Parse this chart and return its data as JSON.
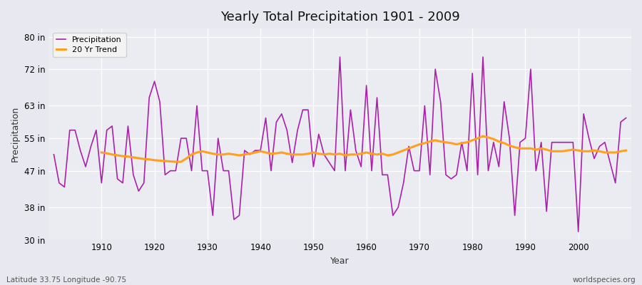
{
  "title": "Yearly Total Precipitation 1901 - 2009",
  "xlabel": "Year",
  "ylabel": "Precipitation",
  "lat_lon_label": "Latitude 33.75 Longitude -90.75",
  "source_label": "worldspecies.org",
  "ylim": [
    30,
    82
  ],
  "yticks": [
    30,
    38,
    47,
    55,
    63,
    72,
    80
  ],
  "ytick_labels": [
    "30 in",
    "38 in",
    "47 in",
    "55 in",
    "63 in",
    "72 in",
    "80 in"
  ],
  "xlim": [
    1900,
    2010
  ],
  "bg_color": "#e8e8f0",
  "plot_bg_color": "#ebebf2",
  "grid_color": "#ffffff",
  "precip_color": "#aa22aa",
  "trend_color": "#ffa020",
  "legend_entries": [
    "Precipitation",
    "20 Yr Trend"
  ],
  "years": [
    1901,
    1902,
    1903,
    1904,
    1905,
    1906,
    1907,
    1908,
    1909,
    1910,
    1911,
    1912,
    1913,
    1914,
    1915,
    1916,
    1917,
    1918,
    1919,
    1920,
    1921,
    1922,
    1923,
    1924,
    1925,
    1926,
    1927,
    1928,
    1929,
    1930,
    1931,
    1932,
    1933,
    1934,
    1935,
    1936,
    1937,
    1938,
    1939,
    1940,
    1941,
    1942,
    1943,
    1944,
    1945,
    1946,
    1947,
    1948,
    1949,
    1950,
    1951,
    1952,
    1953,
    1954,
    1955,
    1956,
    1957,
    1958,
    1959,
    1960,
    1961,
    1962,
    1963,
    1964,
    1965,
    1966,
    1967,
    1968,
    1969,
    1970,
    1971,
    1972,
    1973,
    1974,
    1975,
    1976,
    1977,
    1978,
    1979,
    1980,
    1981,
    1982,
    1983,
    1984,
    1985,
    1986,
    1987,
    1988,
    1989,
    1990,
    1991,
    1992,
    1993,
    1994,
    1995,
    1996,
    1997,
    1998,
    1999,
    2000,
    2001,
    2002,
    2003,
    2004,
    2005,
    2006,
    2007,
    2008,
    2009
  ],
  "precip": [
    51,
    44,
    43,
    57,
    57,
    52,
    48,
    53,
    57,
    44,
    57,
    58,
    45,
    44,
    58,
    46,
    42,
    44,
    65,
    69,
    64,
    46,
    47,
    47,
    55,
    55,
    47,
    63,
    47,
    47,
    36,
    55,
    47,
    47,
    35,
    36,
    52,
    51,
    52,
    52,
    60,
    47,
    59,
    61,
    57,
    49,
    57,
    62,
    62,
    48,
    56,
    51,
    49,
    47,
    75,
    47,
    62,
    52,
    48,
    68,
    47,
    65,
    46,
    46,
    36,
    38,
    44,
    53,
    47,
    47,
    63,
    46,
    72,
    64,
    46,
    45,
    46,
    54,
    47,
    71,
    46,
    75,
    47,
    54,
    48,
    64,
    55,
    36,
    54,
    55,
    72,
    47,
    54,
    37,
    54,
    54,
    54,
    54,
    54,
    32,
    61,
    55,
    50,
    53,
    54,
    49,
    44,
    59,
    60
  ],
  "trend": [
    null,
    null,
    null,
    null,
    null,
    null,
    null,
    null,
    null,
    51.5,
    51.3,
    51.0,
    50.8,
    50.6,
    50.5,
    50.3,
    50.1,
    49.9,
    49.8,
    49.6,
    49.5,
    49.4,
    49.3,
    49.2,
    49.2,
    50.0,
    51.0,
    51.5,
    51.8,
    51.5,
    51.2,
    51.0,
    51.0,
    51.2,
    51.0,
    50.8,
    51.0,
    51.2,
    51.5,
    51.8,
    51.5,
    51.2,
    51.3,
    51.5,
    51.2,
    51.0,
    51.0,
    51.0,
    51.2,
    51.5,
    51.2,
    51.0,
    51.2,
    51.0,
    51.2,
    50.8,
    51.0,
    51.0,
    51.2,
    51.5,
    51.2,
    51.0,
    51.2,
    50.8,
    51.0,
    51.5,
    52.0,
    52.5,
    53.0,
    53.5,
    53.8,
    54.2,
    54.5,
    54.2,
    54.0,
    53.8,
    53.5,
    53.8,
    54.0,
    54.5,
    55.0,
    55.5,
    55.2,
    54.8,
    54.2,
    53.8,
    53.2,
    52.8,
    52.5,
    52.5,
    52.5,
    52.2,
    52.5,
    52.2,
    51.8,
    51.8,
    51.8,
    52.0,
    52.2,
    52.0,
    51.8,
    51.8,
    52.0,
    51.8,
    51.5,
    51.5,
    51.5,
    51.8,
    52.0
  ]
}
